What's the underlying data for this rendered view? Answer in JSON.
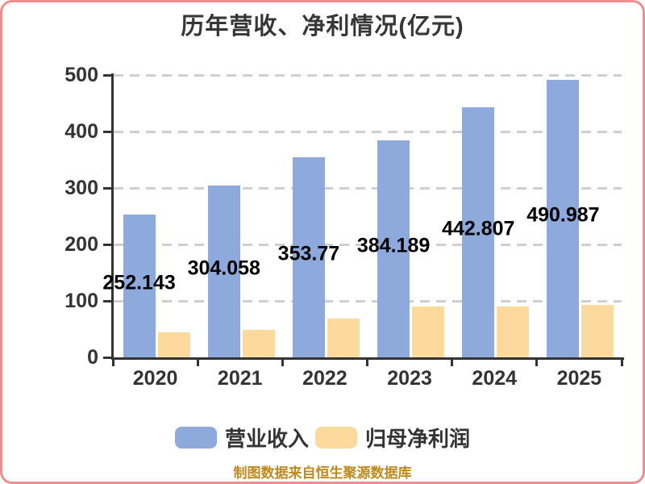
{
  "title": "历年营收、净利情况(亿元)",
  "footer_credit": "制图数据来自恒生聚源数据库",
  "legend": [
    {
      "key": "revenue",
      "label": "营业收入",
      "color": "#8ea9db"
    },
    {
      "key": "net_profit",
      "label": "归母净利润",
      "color": "#fcda9d"
    }
  ],
  "colors": {
    "revenue_bar": "#8ea9db",
    "net_profit_bar": "#fcda9d",
    "axis": "#333333",
    "gridline": "#cfcfcf",
    "value_label": "#000000",
    "footer_text": "#be8a1f",
    "background": "#ffffff",
    "frame_border": "#ec8f8f"
  },
  "chart_data": {
    "type": "bar",
    "title": "历年营收、净利情况(亿元)",
    "categories": [
      "2020",
      "2021",
      "2022",
      "2023",
      "2024",
      "2025"
    ],
    "series": [
      {
        "key": "revenue",
        "name": "营业收入",
        "color": "#8ea9db",
        "values": [
          252.143,
          304.058,
          353.77,
          384.189,
          442.807,
          490.987
        ],
        "labels": [
          "252.143",
          "304.058",
          "353.77",
          "384.189",
          "442.807",
          "490.987"
        ]
      },
      {
        "key": "net_profit",
        "name": "归母净利润",
        "color": "#fcda9d",
        "values": [
          45,
          49,
          69,
          90,
          90,
          93
        ],
        "values_estimated_from_gridlines": true
      }
    ],
    "xlabel": "",
    "ylabel": "",
    "ylim": [
      0,
      500
    ],
    "yticks": [
      0,
      100,
      200,
      300,
      400,
      500
    ],
    "grid": "horizontal dashed",
    "legend_position": "bottom",
    "value_labels": "revenue series only, centered at bar mid-height"
  }
}
